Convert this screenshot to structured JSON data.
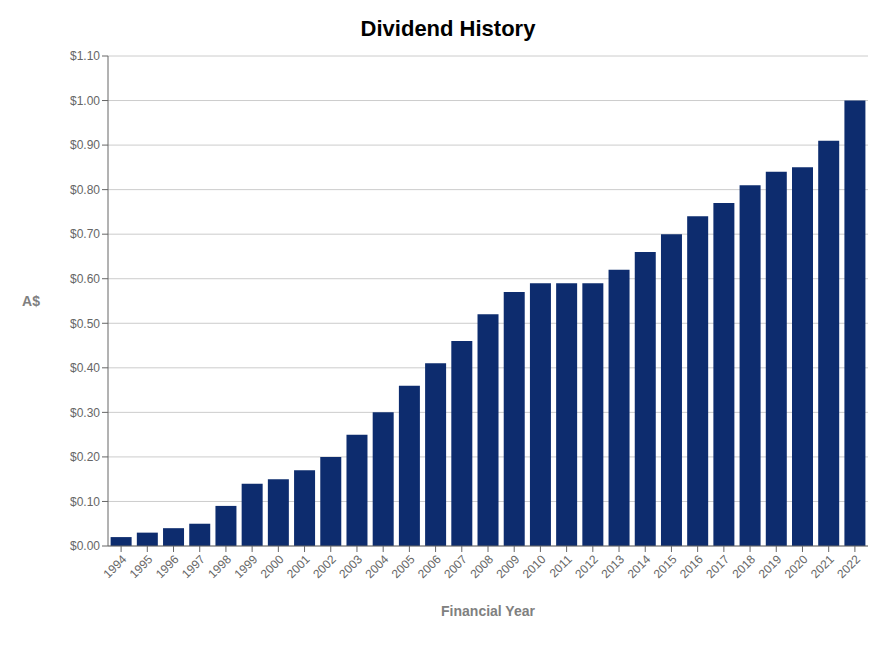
{
  "chart_data": {
    "type": "bar",
    "title": "Dividend History",
    "xlabel": "Financial Year",
    "ylabel": "A$",
    "categories": [
      "1994",
      "1995",
      "1996",
      "1997",
      "1998",
      "1999",
      "2000",
      "2001",
      "2002",
      "2003",
      "2004",
      "2005",
      "2006",
      "2007",
      "2008",
      "2009",
      "2010",
      "2011",
      "2012",
      "2013",
      "2014",
      "2015",
      "2016",
      "2017",
      "2018",
      "2019",
      "2020",
      "2021",
      "2022"
    ],
    "values": [
      0.02,
      0.03,
      0.04,
      0.05,
      0.09,
      0.14,
      0.15,
      0.17,
      0.2,
      0.25,
      0.3,
      0.36,
      0.41,
      0.46,
      0.52,
      0.57,
      0.59,
      0.59,
      0.59,
      0.62,
      0.66,
      0.7,
      0.74,
      0.77,
      0.81,
      0.84,
      0.85,
      0.91,
      1.0
    ],
    "color": "#0d2c6e",
    "ylim": [
      0,
      1.1
    ],
    "yticks": [
      {
        "value": 0,
        "label": "$0.00"
      },
      {
        "value": 0.1,
        "label": "$0.10"
      },
      {
        "value": 0.2,
        "label": "$0.20"
      },
      {
        "value": 0.3,
        "label": "$0.30"
      },
      {
        "value": 0.4,
        "label": "$0.40"
      },
      {
        "value": 0.5,
        "label": "$0.50"
      },
      {
        "value": 0.6,
        "label": "$0.60"
      },
      {
        "value": 0.7,
        "label": "$0.70"
      },
      {
        "value": 0.8,
        "label": "$0.80"
      },
      {
        "value": 0.9,
        "label": "$0.90"
      },
      {
        "value": 1.0,
        "label": "$1.00"
      },
      {
        "value": 1.1,
        "label": "$1.10"
      }
    ],
    "grid": true
  }
}
